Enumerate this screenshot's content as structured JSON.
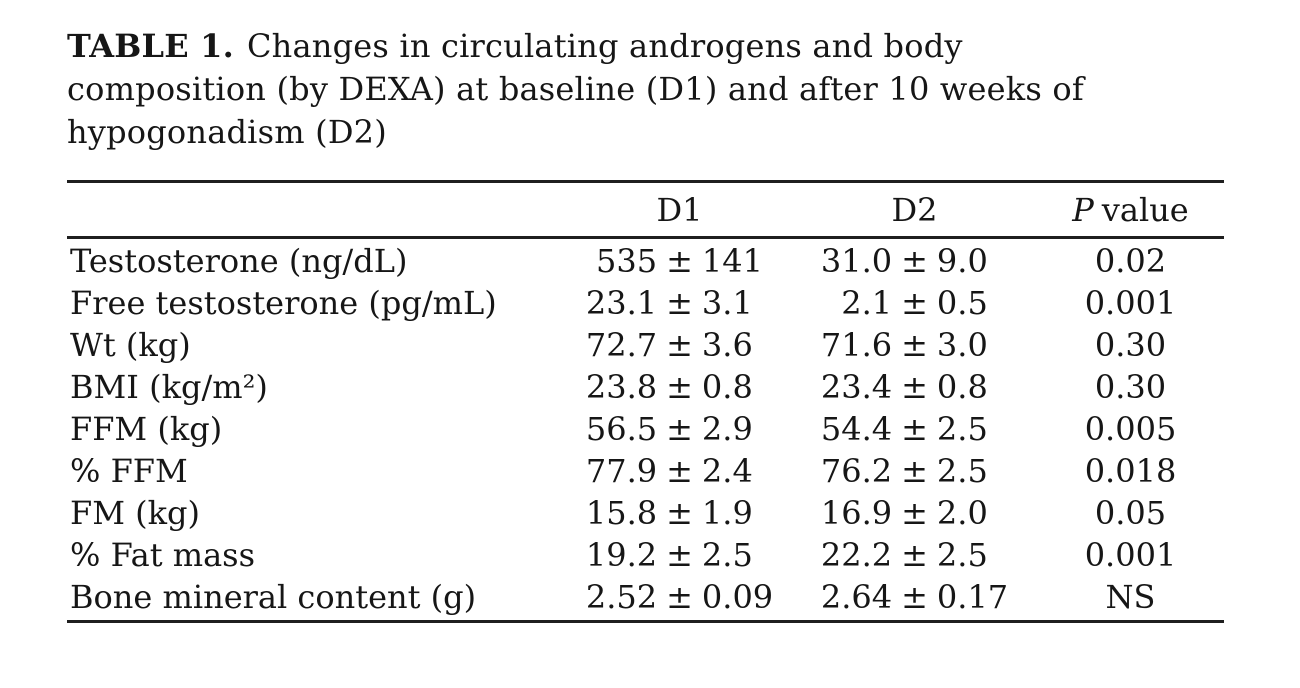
{
  "title": {
    "label": "TABLE 1.",
    "line1_rest": "Changes in circulating androgens and body",
    "line2": "composition (by DEXA) at baseline (D1) and after 10 weeks of",
    "line3": "hypogonadism (D2)"
  },
  "table": {
    "pm": "±",
    "columns": {
      "d1": "D1",
      "d2": "D2",
      "p_italic": "P",
      "p_rest": "value"
    },
    "rows": [
      {
        "label": "Testosterone (ng/dL)",
        "d1_mean": "535",
        "d1_sd": "141",
        "d2_mean": "31.0",
        "d2_sd": "9.0",
        "p": "0.02"
      },
      {
        "label": "Free testosterone (pg/mL)",
        "d1_mean": "23.1",
        "d1_sd": "3.1",
        "d2_mean": "2.1",
        "d2_sd": "0.5",
        "p": "0.001"
      },
      {
        "label": "Wt (kg)",
        "d1_mean": "72.7",
        "d1_sd": "3.6",
        "d2_mean": "71.6",
        "d2_sd": "3.0",
        "p": "0.30"
      },
      {
        "label": "BMI (kg/m²)",
        "d1_mean": "23.8",
        "d1_sd": "0.8",
        "d2_mean": "23.4",
        "d2_sd": "0.8",
        "p": "0.30"
      },
      {
        "label": "FFM (kg)",
        "d1_mean": "56.5",
        "d1_sd": "2.9",
        "d2_mean": "54.4",
        "d2_sd": "2.5",
        "p": "0.005"
      },
      {
        "label": "% FFM",
        "d1_mean": "77.9",
        "d1_sd": "2.4",
        "d2_mean": "76.2",
        "d2_sd": "2.5",
        "p": "0.018"
      },
      {
        "label": "FM (kg)",
        "d1_mean": "15.8",
        "d1_sd": "1.9",
        "d2_mean": "16.9",
        "d2_sd": "2.0",
        "p": "0.05"
      },
      {
        "label": "% Fat mass",
        "d1_mean": "19.2",
        "d1_sd": "2.5",
        "d2_mean": "22.2",
        "d2_sd": "2.5",
        "p": "0.001"
      },
      {
        "label": "Bone mineral content (g)",
        "d1_mean": "2.52",
        "d1_sd": "0.09",
        "d2_mean": "2.64",
        "d2_sd": "0.17",
        "p": "NS"
      }
    ]
  }
}
